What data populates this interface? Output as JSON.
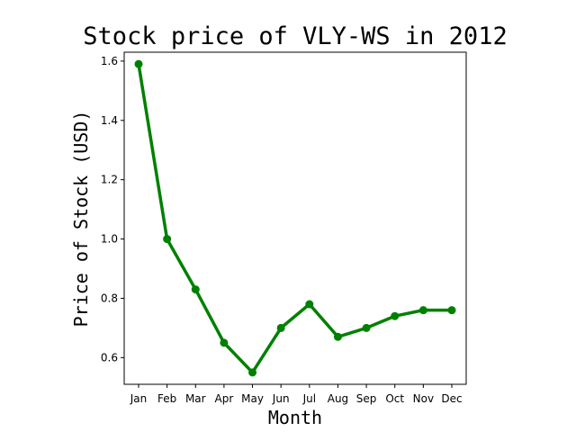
{
  "chart_data": {
    "type": "line",
    "title": "Stock price of VLY-WS in 2012",
    "xlabel": "Month",
    "ylabel": "Price of Stock (USD)",
    "categories": [
      "Jan",
      "Feb",
      "Mar",
      "Apr",
      "May",
      "Jun",
      "Jul",
      "Aug",
      "Sep",
      "Oct",
      "Nov",
      "Dec"
    ],
    "series": [
      {
        "values": [
          1.59,
          1.0,
          0.83,
          0.65,
          0.55,
          0.7,
          0.78,
          0.67,
          0.7,
          0.74,
          0.76,
          0.76
        ]
      }
    ],
    "ylim": [
      0.51,
      1.63
    ],
    "yticks": [
      0.6,
      0.8,
      1.0,
      1.2,
      1.4,
      1.6
    ],
    "ytick_labels": [
      "0.6",
      "0.8",
      "1.0",
      "1.2",
      "1.4",
      "1.6"
    ],
    "grid": false,
    "line_color": "#008000"
  }
}
